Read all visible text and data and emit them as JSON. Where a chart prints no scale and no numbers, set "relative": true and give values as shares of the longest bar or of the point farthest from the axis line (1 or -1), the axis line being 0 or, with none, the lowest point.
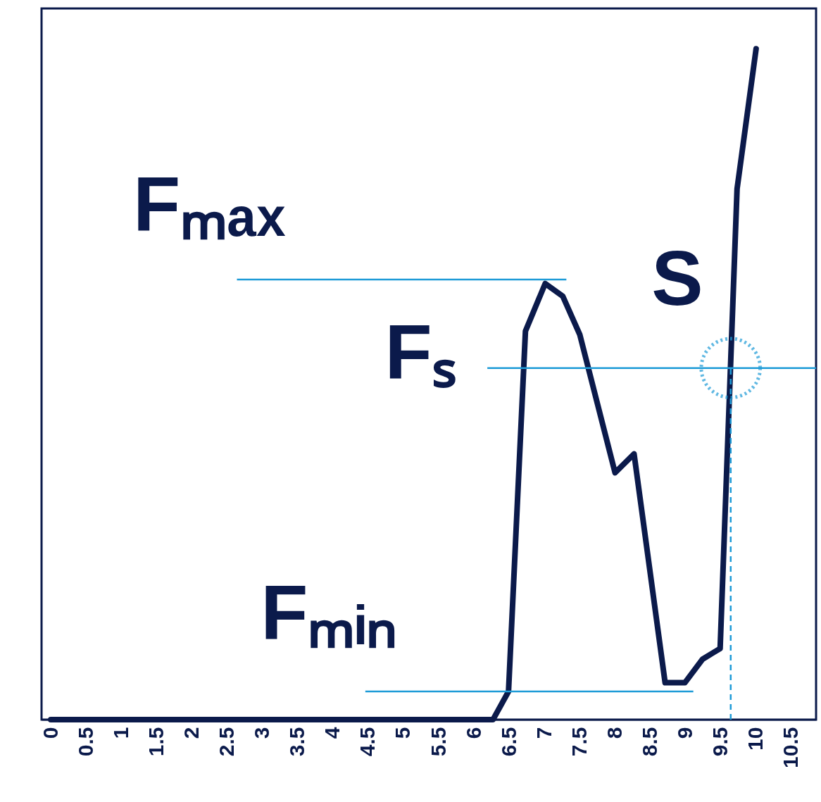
{
  "chart_data": {
    "type": "line",
    "relative": true,
    "xlim": [
      -0.13,
      10.85
    ],
    "xticks": [
      0,
      0.5,
      1,
      1.5,
      2,
      2.5,
      3,
      3.5,
      4,
      4.5,
      5,
      5.5,
      6,
      6.5,
      7,
      7.5,
      8,
      8.5,
      9,
      9.5,
      10,
      10.5
    ],
    "grid": false,
    "marker": "none",
    "series": [
      {
        "color": "#0b1a4b",
        "line_style": "solid",
        "x": [
          0,
          6.27,
          6.49,
          6.73,
          7.01,
          7.26,
          7.5,
          8.0,
          8.27,
          8.71,
          8.99,
          9.24,
          9.49,
          9.73,
          10.0
        ],
        "values": [
          0,
          0,
          0.042,
          0.579,
          0.65,
          0.631,
          0.574,
          0.368,
          0.396,
          0.055,
          0.055,
          0.09,
          0.106,
          0.791,
          1.0
        ]
      },
      {
        "color": "#1e9bd7",
        "line_style": "solid",
        "x": [
          2.64,
          7.31
        ],
        "values": [
          0.656,
          0.656
        ]
      },
      {
        "color": "#1e9bd7",
        "line_style": "solid",
        "x": [
          6.19,
          10.85
        ],
        "values": [
          0.524,
          0.524
        ]
      },
      {
        "color": "#1e9bd7",
        "line_style": "solid",
        "x": [
          4.46,
          9.11
        ],
        "values": [
          0.042,
          0.042
        ]
      },
      {
        "color": "#1e9bd7",
        "line_style": "dashed",
        "x": [
          9.64,
          9.64
        ],
        "values": [
          0,
          0.524
        ]
      },
      {
        "type": "scatter",
        "color": "#1e9bd7",
        "marker": "circle",
        "line_style": "dotted",
        "x": [
          9.64
        ],
        "values": [
          0.524
        ]
      }
    ],
    "annotations": [
      "Fₘₐₓ",
      "Fₛ",
      "Fₘᵢₙ",
      "S"
    ]
  }
}
